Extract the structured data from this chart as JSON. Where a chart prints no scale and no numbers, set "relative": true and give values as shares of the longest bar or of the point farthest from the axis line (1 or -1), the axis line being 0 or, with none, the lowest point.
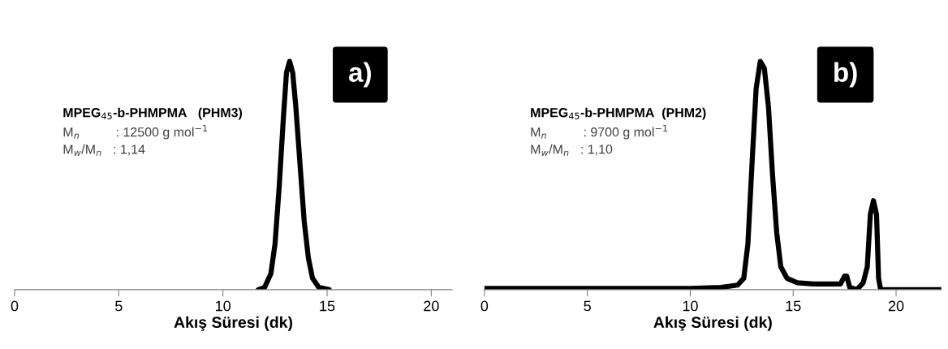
{
  "chart_data": [
    {
      "type": "line",
      "relative": true,
      "xlabel": "Akış Süresi (dk)",
      "xlim": [
        0,
        21
      ],
      "xticks": [
        0,
        5,
        10,
        15,
        20
      ],
      "grid": false,
      "legend": false,
      "marker": "none",
      "line_style": "solid",
      "tick_labels": "x",
      "annotations": [
        "a)",
        "MPEG$_{45}$-b-PHMPMA   (PHM3)",
        "M$_{n}$          : 12500 g mol$^{−1}$",
        "M$_{w}$/M$_{n}$   : 1,14"
      ],
      "series": [
        {
          "color": "#000000",
          "x": [
            11.7,
            12.0,
            12.3,
            12.5,
            12.7,
            12.9,
            13.05,
            13.2,
            13.35,
            13.5,
            13.7,
            13.9,
            14.1,
            14.3,
            14.6,
            15.1
          ],
          "values": [
            0,
            0.01,
            0.07,
            0.2,
            0.45,
            0.75,
            0.95,
            1,
            0.95,
            0.8,
            0.55,
            0.3,
            0.14,
            0.05,
            0.01,
            0
          ]
        }
      ]
    },
    {
      "type": "line",
      "relative": true,
      "xlabel": "Akış Süresi (dk)",
      "xlim": [
        0,
        22.2
      ],
      "xticks": [
        0,
        5,
        10,
        15,
        20
      ],
      "grid": false,
      "legend": false,
      "marker": "none",
      "line_style": "solid",
      "tick_labels": "x",
      "annotations": [
        "b)",
        "MPEG$_{45}$-b-PHMPMA  (PHM2)",
        "M$_{n}$          : 9700 g mol$^{−1}$",
        "M$_{w}$/M$_{n}$   : 1,10"
      ],
      "series": [
        {
          "color": "#000000",
          "x": [
            0,
            2,
            5,
            8,
            10,
            11.5,
            12.3,
            12.6,
            12.8,
            13.0,
            13.2,
            13.4,
            13.6,
            13.8,
            14.0,
            14.2,
            14.4,
            14.7,
            15.2,
            16,
            17.3,
            17.5,
            17.6,
            17.75,
            18.1,
            18.4,
            18.6,
            18.75,
            18.9,
            19.05,
            19.15,
            19.25,
            20,
            22.2
          ],
          "values": [
            0.005,
            0.005,
            0.005,
            0.005,
            0.005,
            0.01,
            0.02,
            0.05,
            0.2,
            0.55,
            0.88,
            1,
            0.97,
            0.8,
            0.5,
            0.25,
            0.1,
            0.05,
            0.03,
            0.025,
            0.025,
            0.06,
            0.06,
            0.01,
            0,
            0.03,
            0.1,
            0.33,
            0.39,
            0.33,
            0.05,
            0,
            0,
            0
          ]
        }
      ]
    }
  ]
}
